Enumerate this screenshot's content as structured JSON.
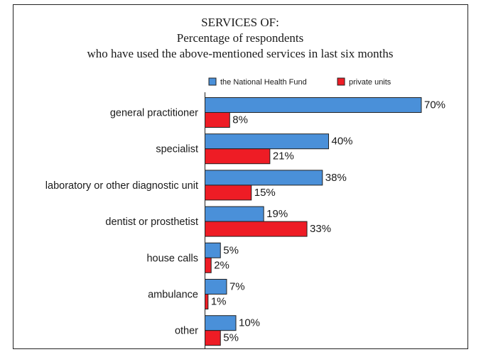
{
  "chart_data": {
    "type": "bar",
    "orientation": "horizontal",
    "title": "SERVICES OF:",
    "subtitle": [
      "Percentage of respondents",
      "who have used the above-mentioned services in last six months"
    ],
    "categories": [
      "general practitioner",
      "specialist",
      "laboratory or other diagnostic unit",
      "dentist or prosthetist",
      "house calls",
      "ambulance",
      "other"
    ],
    "series": [
      {
        "name": "the National Health Fund",
        "color": "#4a90d9",
        "values": [
          70,
          40,
          38,
          19,
          5,
          7,
          10
        ],
        "labels": [
          "70%",
          "40%",
          "38%",
          "19%",
          "5%",
          "7%",
          "10%"
        ]
      },
      {
        "name": "private units",
        "color": "#ee1c25",
        "values": [
          8,
          21,
          15,
          33,
          2,
          1,
          5
        ],
        "labels": [
          "8%",
          "21%",
          "15%",
          "33%",
          "2%",
          "1%",
          "5%"
        ]
      }
    ],
    "xlim": [
      0,
      70
    ],
    "legend_position": "top",
    "grid": false
  }
}
